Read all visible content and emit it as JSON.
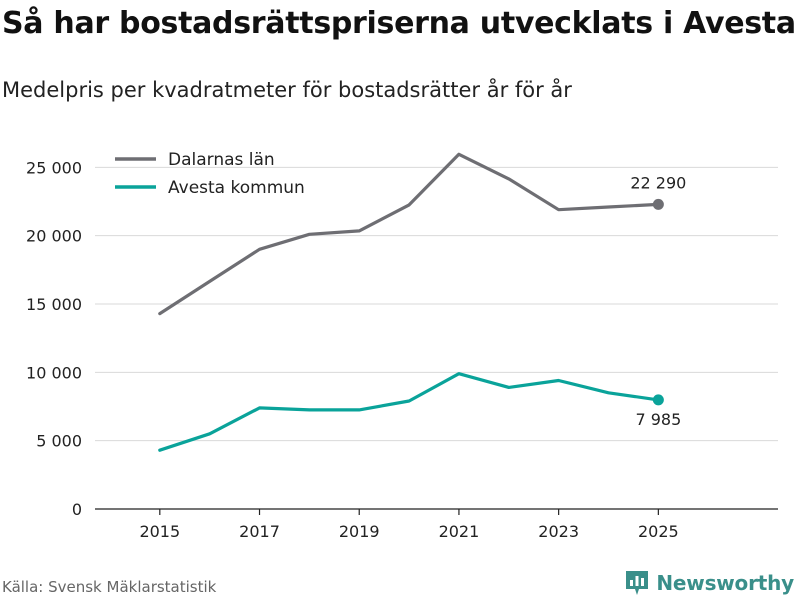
{
  "title": "Så har bostadsrättspriserna utvecklats i Avesta",
  "subtitle": "Medelpris per kvadratmeter för bostadsrätter år för år",
  "source": "Källa: Svensk Mäklarstatistik",
  "brand": "Newsworthy",
  "colors": {
    "dalarna": "#6e6e73",
    "avesta": "#0aa39a",
    "grid": "#d9d9d9",
    "brand": "#3a8f8a"
  },
  "chart_data": {
    "type": "line",
    "title": "Så har bostadsrättspriserna utvecklats i Avesta",
    "subtitle": "Medelpris per kvadratmeter för bostadsrätter år för år",
    "xlabel": "",
    "ylabel": "",
    "x": [
      2015,
      2016,
      2017,
      2018,
      2019,
      2020,
      2021,
      2022,
      2023,
      2024,
      2025
    ],
    "xticks": [
      2015,
      2017,
      2019,
      2021,
      2023,
      2025
    ],
    "xtick_labels": [
      "2015",
      "2017",
      "2019",
      "2021",
      "2023",
      "2025"
    ],
    "yticks": [
      0,
      5000,
      10000,
      15000,
      20000,
      25000
    ],
    "ytick_labels": [
      "0",
      "5 000",
      "10 000",
      "15 000",
      "20 000",
      "25 000"
    ],
    "xlim": [
      2013.7,
      2027.4
    ],
    "ylim": [
      0,
      27000
    ],
    "grid": true,
    "legend_position": "top-left",
    "series": [
      {
        "name": "Dalarnas län",
        "color": "#6e6e73",
        "values": [
          14300,
          16650,
          19000,
          20100,
          20350,
          22250,
          25950,
          24150,
          21900,
          22100,
          22290
        ],
        "end_label": "22 290",
        "end_label_position": "above"
      },
      {
        "name": "Avesta kommun",
        "color": "#0aa39a",
        "values": [
          4300,
          5500,
          7400,
          7250,
          7250,
          7900,
          9900,
          8900,
          9400,
          8500,
          7985
        ],
        "end_label": "7 985",
        "end_label_position": "below"
      }
    ]
  }
}
